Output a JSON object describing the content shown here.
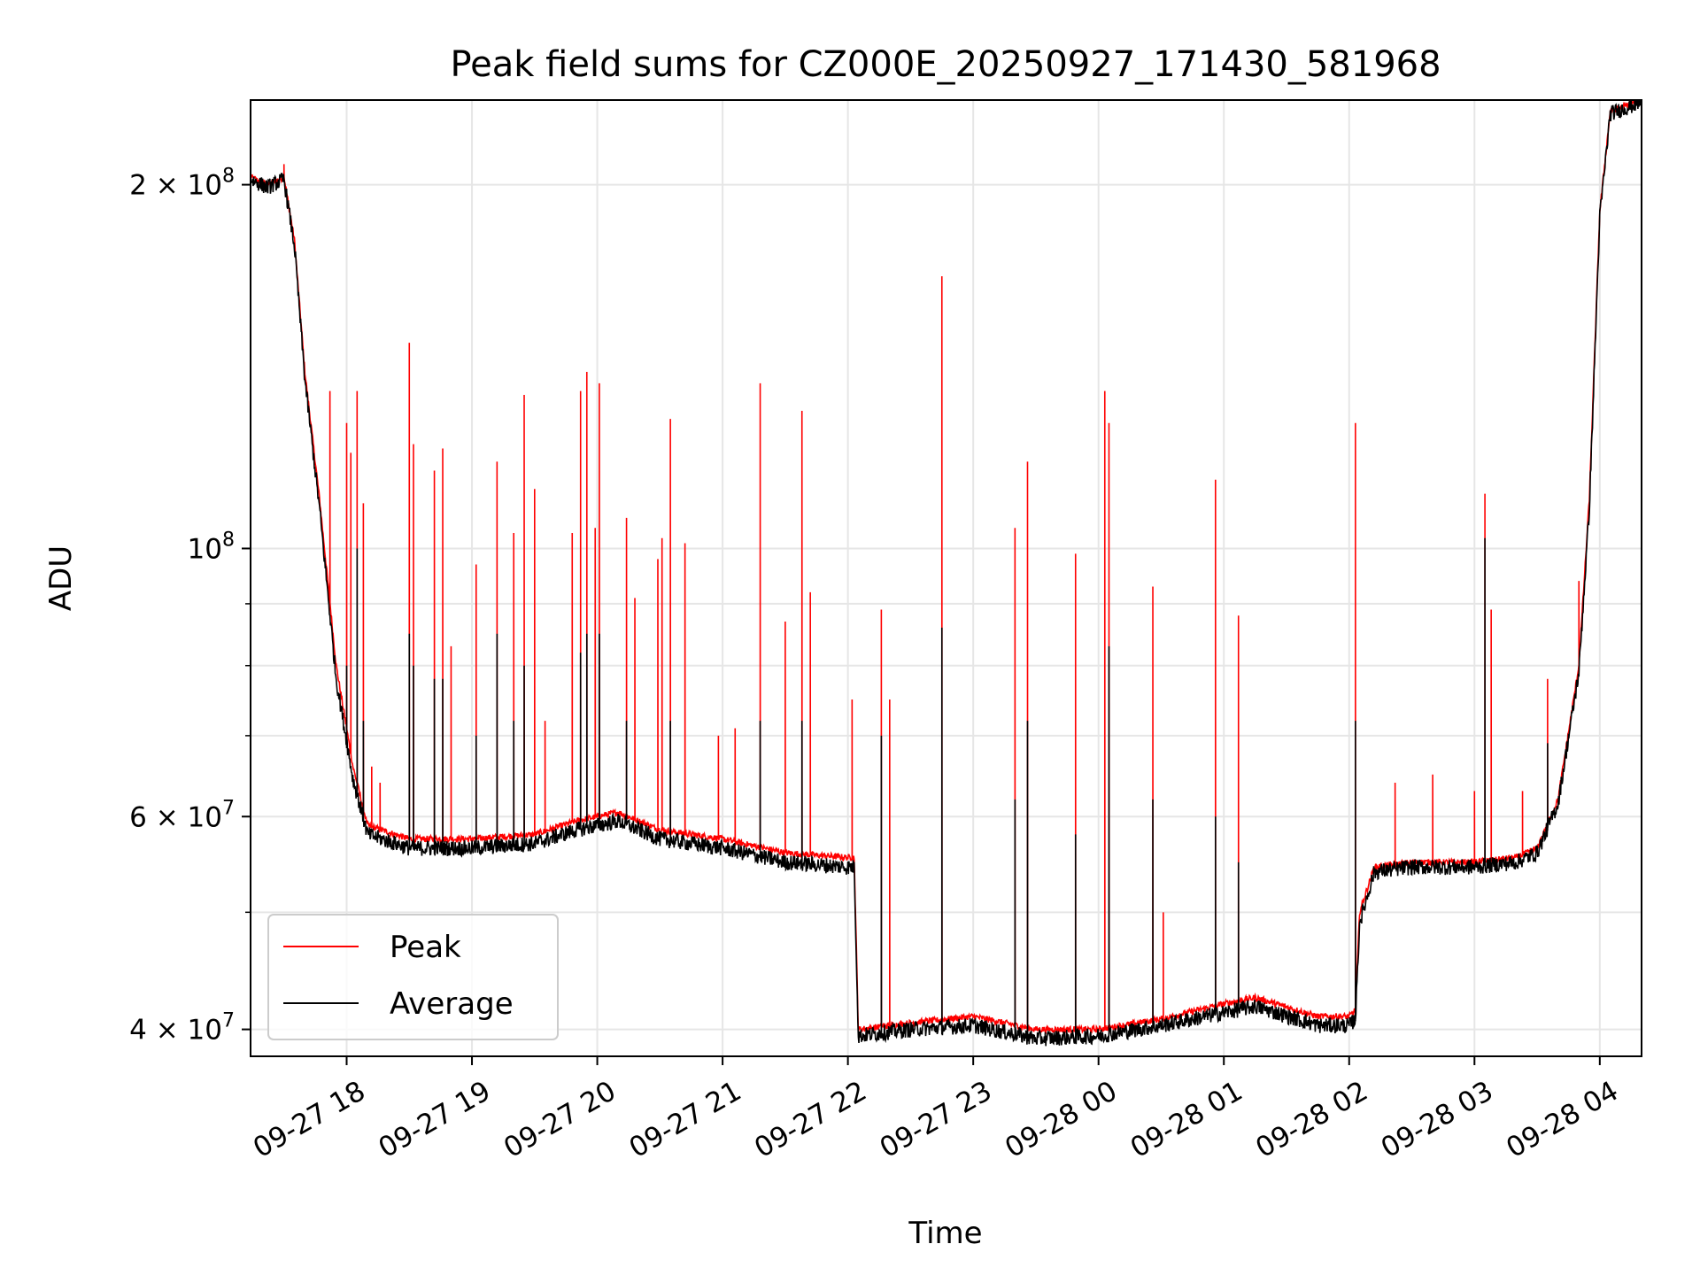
{
  "chart_data": {
    "type": "line",
    "title": "Peak field sums for CZ000E_20250927_171430_581968",
    "xlabel": "Time",
    "ylabel": "ADU",
    "yscale": "log",
    "ylim": [
      38000000,
      235000000
    ],
    "xlim": [
      "09-27 17:14",
      "09-28 04:20"
    ],
    "grid": true,
    "legend_position": "lower-left",
    "colors": {
      "peak": "#ff0000",
      "average": "#000000",
      "grid": "#e6e6e6"
    },
    "x_ticks": [
      {
        "t": "09-27 18:00",
        "label": "09-27 18"
      },
      {
        "t": "09-27 19:00",
        "label": "09-27 19"
      },
      {
        "t": "09-27 20:00",
        "label": "09-27 20"
      },
      {
        "t": "09-27 21:00",
        "label": "09-27 21"
      },
      {
        "t": "09-27 22:00",
        "label": "09-27 22"
      },
      {
        "t": "09-27 23:00",
        "label": "09-27 23"
      },
      {
        "t": "09-28 00:00",
        "label": "09-28 00"
      },
      {
        "t": "09-28 01:00",
        "label": "09-28 01"
      },
      {
        "t": "09-28 02:00",
        "label": "09-28 02"
      },
      {
        "t": "09-28 03:00",
        "label": "09-28 03"
      },
      {
        "t": "09-28 04:00",
        "label": "09-28 04"
      }
    ],
    "y_ticks": [
      {
        "value": 40000000,
        "label": "4 × 10",
        "exp": "7"
      },
      {
        "value": 60000000,
        "label": "6 × 10",
        "exp": "7"
      },
      {
        "value": 100000000,
        "label": "10",
        "exp": "8"
      },
      {
        "value": 200000000,
        "label": "2 × 10",
        "exp": "8"
      }
    ],
    "y_minor_ticks": [
      50000000,
      70000000,
      80000000,
      90000000,
      300000000
    ],
    "series": [
      {
        "name": "Peak",
        "baseline": [
          [
            "09-27 17:14",
            203000000
          ],
          [
            "09-27 17:22",
            200000000
          ],
          [
            "09-27 17:30",
            203000000
          ],
          [
            "09-27 17:35",
            180000000
          ],
          [
            "09-27 17:40",
            140000000
          ],
          [
            "09-27 17:47",
            110000000
          ],
          [
            "09-27 17:55",
            80000000
          ],
          [
            "09-27 18:03",
            66000000
          ],
          [
            "09-27 18:10",
            59000000
          ],
          [
            "09-27 18:30",
            57500000
          ],
          [
            "09-27 19:00",
            57500000
          ],
          [
            "09-27 19:30",
            58000000
          ],
          [
            "09-27 19:50",
            59500000
          ],
          [
            "09-27 20:10",
            60500000
          ],
          [
            "09-27 20:30",
            58500000
          ],
          [
            "09-27 21:00",
            57500000
          ],
          [
            "09-27 21:30",
            56000000
          ],
          [
            "09-27 22:00",
            55500000
          ],
          [
            "09-27 22:03",
            55500000
          ],
          [
            "09-27 22:05",
            40000000
          ],
          [
            "09-27 22:30",
            40500000
          ],
          [
            "09-27 23:00",
            41000000
          ],
          [
            "09-27 23:30",
            40000000
          ],
          [
            "09-28 00:00",
            40000000
          ],
          [
            "09-28 00:30",
            40800000
          ],
          [
            "09-28 01:00",
            42000000
          ],
          [
            "09-28 01:15",
            42500000
          ],
          [
            "09-28 01:45",
            41000000
          ],
          [
            "09-28 02:00",
            41000000
          ],
          [
            "09-28 02:03",
            41500000
          ],
          [
            "09-28 02:05",
            50000000
          ],
          [
            "09-28 02:12",
            54500000
          ],
          [
            "09-28 02:30",
            55000000
          ],
          [
            "09-28 03:00",
            55000000
          ],
          [
            "09-28 03:20",
            55500000
          ],
          [
            "09-28 03:30",
            56500000
          ],
          [
            "09-28 03:40",
            62000000
          ],
          [
            "09-28 03:50",
            80000000
          ],
          [
            "09-28 03:55",
            110000000
          ],
          [
            "09-28 04:00",
            190000000
          ],
          [
            "09-28 04:05",
            230000000
          ],
          [
            "09-28 04:20",
            235000000
          ]
        ],
        "spikes": [
          [
            "09-27 17:30",
            208000000
          ],
          [
            "09-27 17:52",
            135000000
          ],
          [
            "09-27 18:00",
            127000000
          ],
          [
            "09-27 18:02",
            120000000
          ],
          [
            "09-27 18:05",
            135000000
          ],
          [
            "09-27 18:08",
            109000000
          ],
          [
            "09-27 18:12",
            66000000
          ],
          [
            "09-27 18:16",
            64000000
          ],
          [
            "09-27 18:30",
            148000000
          ],
          [
            "09-27 18:32",
            122000000
          ],
          [
            "09-27 18:42",
            116000000
          ],
          [
            "09-27 18:46",
            121000000
          ],
          [
            "09-27 18:50",
            83000000
          ],
          [
            "09-27 19:02",
            97000000
          ],
          [
            "09-27 19:12",
            118000000
          ],
          [
            "09-27 19:20",
            103000000
          ],
          [
            "09-27 19:25",
            134000000
          ],
          [
            "09-27 19:30",
            112000000
          ],
          [
            "09-27 19:35",
            72000000
          ],
          [
            "09-27 19:48",
            103000000
          ],
          [
            "09-27 19:52",
            135000000
          ],
          [
            "09-27 19:55",
            140000000
          ],
          [
            "09-27 19:59",
            104000000
          ],
          [
            "09-27 20:01",
            137000000
          ],
          [
            "09-27 20:14",
            106000000
          ],
          [
            "09-27 20:18",
            91000000
          ],
          [
            "09-27 20:29",
            98000000
          ],
          [
            "09-27 20:31",
            102000000
          ],
          [
            "09-27 20:35",
            128000000
          ],
          [
            "09-27 20:42",
            101000000
          ],
          [
            "09-27 20:58",
            70000000
          ],
          [
            "09-27 21:06",
            71000000
          ],
          [
            "09-27 21:18",
            137000000
          ],
          [
            "09-27 21:30",
            87000000
          ],
          [
            "09-27 21:38",
            130000000
          ],
          [
            "09-27 21:42",
            92000000
          ],
          [
            "09-27 22:02",
            75000000
          ],
          [
            "09-27 22:16",
            89000000
          ],
          [
            "09-27 22:20",
            75000000
          ],
          [
            "09-27 22:45",
            168000000
          ],
          [
            "09-27 23:20",
            104000000
          ],
          [
            "09-27 23:26",
            118000000
          ],
          [
            "09-27 23:49",
            99000000
          ],
          [
            "09-28 00:03",
            135000000
          ],
          [
            "09-28 00:05",
            127000000
          ],
          [
            "09-28 00:26",
            93000000
          ],
          [
            "09-28 00:31",
            50000000
          ],
          [
            "09-28 00:56",
            114000000
          ],
          [
            "09-28 01:07",
            88000000
          ],
          [
            "09-28 02:03",
            127000000
          ],
          [
            "09-28 02:22",
            64000000
          ],
          [
            "09-28 02:40",
            65000000
          ],
          [
            "09-28 03:00",
            63000000
          ],
          [
            "09-28 03:05",
            111000000
          ],
          [
            "09-28 03:08",
            89000000
          ],
          [
            "09-28 03:23",
            63000000
          ],
          [
            "09-28 03:35",
            78000000
          ],
          [
            "09-28 03:50",
            94000000
          ]
        ]
      },
      {
        "name": "Average",
        "baseline": [
          [
            "09-27 17:14",
            202000000
          ],
          [
            "09-27 17:22",
            199000000
          ],
          [
            "09-27 17:30",
            202000000
          ],
          [
            "09-27 17:35",
            178000000
          ],
          [
            "09-27 17:40",
            138000000
          ],
          [
            "09-27 17:47",
            108000000
          ],
          [
            "09-27 17:55",
            78000000
          ],
          [
            "09-27 18:03",
            64500000
          ],
          [
            "09-27 18:10",
            58000000
          ],
          [
            "09-27 18:30",
            56500000
          ],
          [
            "09-27 19:00",
            56500000
          ],
          [
            "09-27 19:30",
            57000000
          ],
          [
            "09-27 19:50",
            58500000
          ],
          [
            "09-27 20:10",
            59500000
          ],
          [
            "09-27 20:30",
            57500000
          ],
          [
            "09-27 21:00",
            56500000
          ],
          [
            "09-27 21:30",
            55000000
          ],
          [
            "09-27 22:00",
            54500000
          ],
          [
            "09-27 22:03",
            54500000
          ],
          [
            "09-27 22:05",
            39500000
          ],
          [
            "09-27 22:30",
            40000000
          ],
          [
            "09-27 23:00",
            40300000
          ],
          [
            "09-27 23:30",
            39300000
          ],
          [
            "09-28 00:00",
            39500000
          ],
          [
            "09-28 00:30",
            40300000
          ],
          [
            "09-28 01:00",
            41300000
          ],
          [
            "09-28 01:15",
            41800000
          ],
          [
            "09-28 01:45",
            40300000
          ],
          [
            "09-28 02:00",
            40300000
          ],
          [
            "09-28 02:03",
            40800000
          ],
          [
            "09-28 02:05",
            49000000
          ],
          [
            "09-28 02:12",
            54000000
          ],
          [
            "09-28 02:30",
            54500000
          ],
          [
            "09-28 03:00",
            54500000
          ],
          [
            "09-28 03:20",
            55000000
          ],
          [
            "09-28 03:30",
            56000000
          ],
          [
            "09-28 03:40",
            61500000
          ],
          [
            "09-28 03:50",
            79000000
          ],
          [
            "09-28 03:55",
            108000000
          ],
          [
            "09-28 04:00",
            188000000
          ],
          [
            "09-28 04:05",
            229000000
          ],
          [
            "09-28 04:20",
            234000000
          ]
        ],
        "spikes": [
          [
            "09-27 18:00",
            80000000
          ],
          [
            "09-27 18:05",
            100000000
          ],
          [
            "09-27 18:08",
            72000000
          ],
          [
            "09-27 18:30",
            85000000
          ],
          [
            "09-27 18:32",
            80000000
          ],
          [
            "09-27 18:42",
            78000000
          ],
          [
            "09-27 18:46",
            78000000
          ],
          [
            "09-27 19:02",
            70000000
          ],
          [
            "09-27 19:12",
            85000000
          ],
          [
            "09-27 19:20",
            72000000
          ],
          [
            "09-27 19:25",
            80000000
          ],
          [
            "09-27 19:52",
            82000000
          ],
          [
            "09-27 19:55",
            85000000
          ],
          [
            "09-27 20:01",
            85000000
          ],
          [
            "09-27 20:14",
            72000000
          ],
          [
            "09-27 20:35",
            72000000
          ],
          [
            "09-27 21:18",
            72000000
          ],
          [
            "09-27 21:38",
            72000000
          ],
          [
            "09-27 22:16",
            70000000
          ],
          [
            "09-27 22:45",
            86000000
          ],
          [
            "09-27 23:20",
            62000000
          ],
          [
            "09-27 23:26",
            72000000
          ],
          [
            "09-27 23:49",
            58000000
          ],
          [
            "09-28 00:05",
            83000000
          ],
          [
            "09-28 00:26",
            62000000
          ],
          [
            "09-28 00:56",
            60000000
          ],
          [
            "09-28 01:07",
            55000000
          ],
          [
            "09-28 02:03",
            72000000
          ],
          [
            "09-28 03:05",
            102000000
          ],
          [
            "09-28 03:35",
            69000000
          ]
        ]
      }
    ]
  }
}
